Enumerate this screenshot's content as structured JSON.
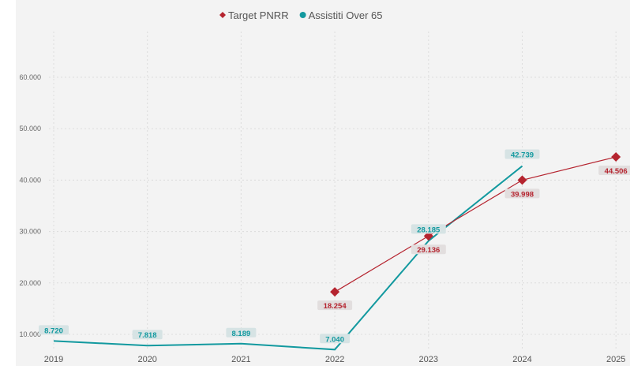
{
  "chart_data": {
    "type": "line",
    "title": "",
    "x": [
      "2019",
      "2020",
      "2021",
      "2022",
      "2023",
      "2024",
      "2025"
    ],
    "yticks": [
      "10.000",
      "20.000",
      "30.000",
      "40.000",
      "50.000",
      "60.000"
    ],
    "ytick_values": [
      10000,
      20000,
      30000,
      40000,
      50000,
      60000
    ],
    "grid": true,
    "legend_position": "top-center",
    "series": [
      {
        "name": "Target PNRR",
        "color": "#b5242f",
        "marker": "diamond",
        "values": [
          null,
          null,
          null,
          18254,
          29136,
          39998,
          44506
        ],
        "labels": [
          null,
          null,
          null,
          "18.254",
          "29.136",
          "39.998",
          "44.506"
        ]
      },
      {
        "name": "Assistiti Over 65",
        "color": "#12999f",
        "marker": "circle",
        "values": [
          8720,
          7818,
          8189,
          7040,
          28185,
          42739,
          null
        ],
        "labels": [
          "8.720",
          "7.818",
          "8.189",
          "7.040",
          "28.185",
          "42.739",
          null
        ]
      }
    ]
  }
}
